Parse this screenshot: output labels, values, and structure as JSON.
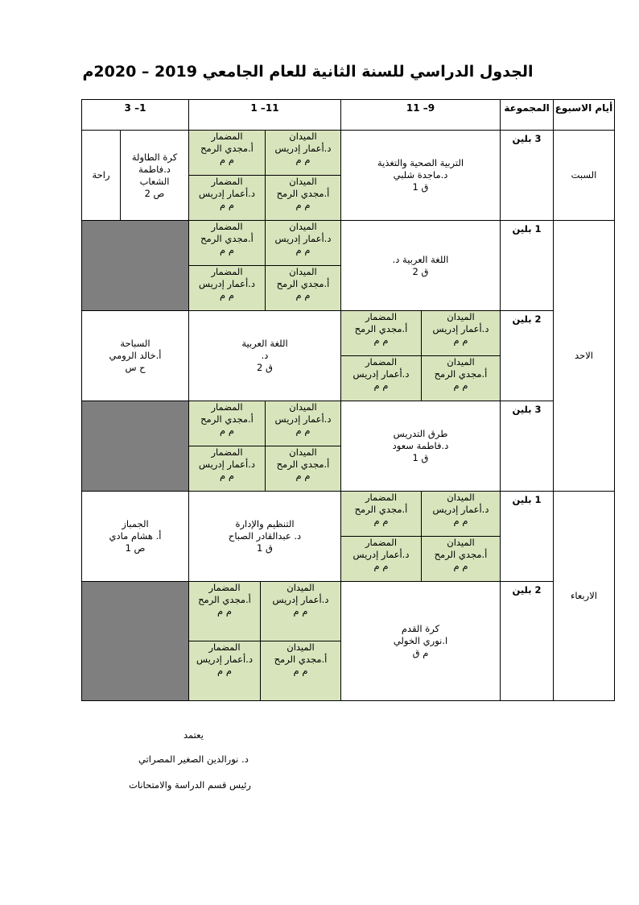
{
  "title": "الجدول الدراسي للسنة الثانية للعام الجامعي 2019 – 2020م",
  "header": {
    "days": "أيام الاسبوع",
    "group": "المجموعة",
    "slot1": "9– 11",
    "slot2": "11– 1",
    "slot3": "1– 3"
  },
  "practical_block": [
    [
      "الميدان",
      "د.أعمار إدريس",
      "م م"
    ],
    [
      "المضمار",
      "أ.مجدي الرمح",
      "م م"
    ],
    [
      "الميدان",
      "أ.مجدي الرمح",
      "م م"
    ],
    [
      "المضمار",
      "د.أعمار إدريس",
      "م م"
    ]
  ],
  "days": [
    {
      "name": "السبت"
    },
    {
      "name": "الاحد"
    },
    {
      "name": "الاربعاء"
    }
  ],
  "rows": [
    {
      "group": "3 بلين",
      "slot1": [
        "التربية الصحية والتغذية",
        "د.ماجدة شلبي",
        "ق 1"
      ],
      "slot2": "practical",
      "slot3": [
        "كرة الطاولة",
        "د.فاطمة",
        "الشعاب",
        "ص 2"
      ],
      "rest": "راحة"
    },
    {
      "group": "1 بلين",
      "slot1": [
        "اللغة العربية د.",
        "ق 2"
      ],
      "slot2": "practical",
      "slot3": "empty"
    },
    {
      "group": "2 بلين",
      "slot1": "practical",
      "slot2": [
        "اللغة العربية",
        "د.",
        "ق 2"
      ],
      "slot3": [
        "السباحة",
        "أ.خالد الرومي",
        "ح س"
      ]
    },
    {
      "group": "3 بلين",
      "slot1": [
        "طرق التدريس",
        "د.فاطمة سعود",
        "ق 1"
      ],
      "slot2": "practical",
      "slot3": "empty"
    },
    {
      "group": "1 بلين",
      "slot1": "practical",
      "slot2": [
        "التنظيم والإدارة",
        "د. عبدالقادر الصباح",
        "ق 1"
      ],
      "slot3": [
        "الجمباز",
        "أ. هشام مادي",
        "ص 1"
      ]
    },
    {
      "group": "2 بلين",
      "slot1": [
        "كرة القدم",
        "ا.نوري الخولي",
        "م ق"
      ],
      "slot2": "practical",
      "slot3": "empty"
    }
  ],
  "footer": {
    "approve": "يعتمد",
    "name": "د. نورالدين الصغير المصراتي",
    "role": "رئيس قسم الدراسة والامتحانات"
  },
  "colors": {
    "practical": "#d8e4bc",
    "empty": "#7f7f7f"
  }
}
